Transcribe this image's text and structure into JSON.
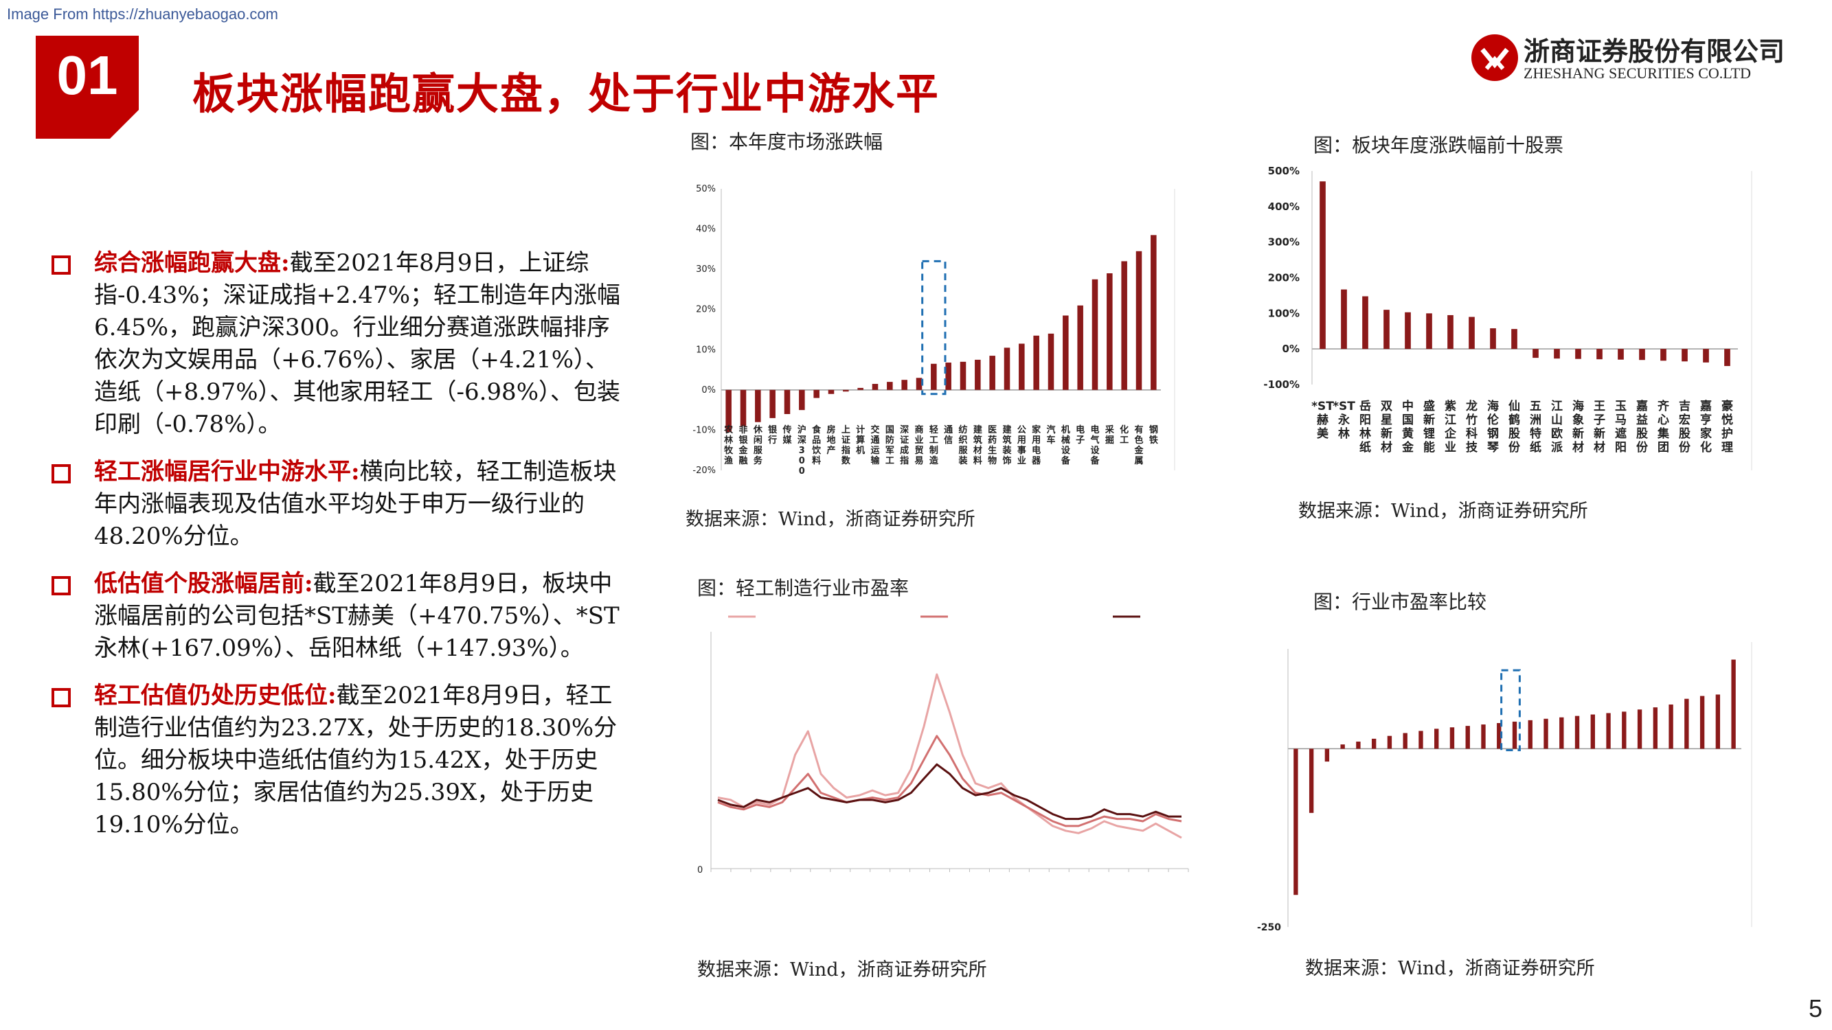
{
  "watermark": "Image From https://zhuanyebaogao.com",
  "section_number": "01",
  "headline": "板块涨幅跑赢大盘，处于行业中游水平",
  "logo": {
    "cn": "浙商证券股份有限公司",
    "en": "ZHESHANG SECURITIES CO.LTD"
  },
  "bullets": [
    {
      "title": "综合涨幅跑赢大盘:",
      "text": "截至2021年8月9日，上证综指-0.43%；深证成指+2.47%；轻工制造年内涨幅6.45%，跑赢沪深300。行业细分赛道涨跌幅排序依次为文娱用品（+6.76%）、家居（+4.21%）、造纸（+8.97%）、其他家用轻工（-6.98%）、包装印刷（-0.78%）。"
    },
    {
      "title": "轻工涨幅居行业中游水平:",
      "text": "横向比较，轻工制造板块年内涨幅表现及估值水平均处于申万一级行业的48.20%分位。"
    },
    {
      "title": "低估值个股涨幅居前:",
      "text": "截至2021年8月9日，板块中涨幅居前的公司包括*ST赫美（+470.75%）、*ST永林(+167.09%）、岳阳林纸（+147.93%）。"
    },
    {
      "title": "轻工估值仍处历史低位:",
      "text": "截至2021年8月9日，轻工制造行业估值约为23.27X，处于历史的18.30%分位。细分板块中造纸估值约为15.42X，处于历史15.80%分位；家居估值约为25.39X，处于历史19.10%分位。"
    }
  ],
  "charts": {
    "market": {
      "caption": "图：本年度市场涨跌幅",
      "source": "数据来源：Wind，浙商证券研究所"
    },
    "top10": {
      "caption": "图：板块年度涨跌幅前十股票",
      "source": "数据来源：Wind，浙商证券研究所"
    },
    "pe": {
      "caption": "图：轻工制造行业市盈率",
      "source": "数据来源：Wind，浙商证券研究所"
    },
    "pe_compare": {
      "caption": "图：行业市盈率比较",
      "source": "数据来源：Wind，浙商证券研究所"
    }
  },
  "page_number": "5",
  "colors": {
    "brand_red": "#c00000",
    "bar_red": "#8b1a1a",
    "highlight_blue": "#1f6fb2"
  },
  "chart_data": [
    {
      "type": "bar",
      "title": "图：本年度市场涨跌幅",
      "ylim": [
        -20,
        50
      ],
      "yticks": [
        "-20%",
        "-10%",
        "0%",
        "10%",
        "20%",
        "30%",
        "40%",
        "50%"
      ],
      "categories": [
        "农林牧渔",
        "非银金融",
        "休闲服务",
        "银行",
        "传媒",
        "沪深300",
        "食品饮料",
        "房地产",
        "上证指数",
        "计算机",
        "交通运输",
        "国防军工",
        "深证成指",
        "商业贸易",
        "轻工制造",
        "通信",
        "纺织服装",
        "建筑材料",
        "医药生物",
        "建筑装饰",
        "公用事业",
        "家用电器",
        "汽车",
        "机械设备",
        "电子",
        "电气设备",
        "采掘",
        "化工",
        "有色金属",
        "钢铁"
      ],
      "values": [
        -10.5,
        -9,
        -8,
        -7,
        -6,
        -5,
        -2,
        -1,
        -0.4,
        0.5,
        1.5,
        2,
        2.5,
        3,
        6.5,
        6.8,
        7,
        7.5,
        8.5,
        10.5,
        11.5,
        13.5,
        14,
        18.5,
        21,
        27.5,
        29,
        32,
        34.5,
        38.5
      ],
      "highlight_index": 14
    },
    {
      "type": "bar",
      "title": "图：板块年度涨跌幅前十股票",
      "ylim": [
        -100,
        500
      ],
      "yticks": [
        "-100%",
        "0%",
        "100%",
        "200%",
        "300%",
        "400%",
        "500%"
      ],
      "categories": [
        "*ST赫美",
        "*ST永林",
        "岳阳林纸",
        "双星新材",
        "中国黄金",
        "盛新锂能",
        "紫江企业",
        "龙竹科技",
        "海伦钢琴",
        "仙鹤股份",
        "五洲特纸",
        "江山欧派",
        "海象新材",
        "王子新材",
        "玉马遮阳",
        "嘉益股份",
        "齐心集团",
        "吉宏股份",
        "嘉亨家化",
        "豪悦护理"
      ],
      "values": [
        470.75,
        167.09,
        147.93,
        110,
        103,
        100,
        95,
        90,
        58,
        56,
        -25,
        -27,
        -28,
        -29,
        -30,
        -31,
        -33,
        -35,
        -38,
        -48
      ]
    },
    {
      "type": "line",
      "title": "图：轻工制造行业市盈率",
      "yticks": [
        "0"
      ],
      "series": [
        {
          "values": [
            30,
            29,
            26,
            28,
            27,
            30,
            48,
            58,
            40,
            34,
            30,
            31,
            33,
            31,
            32,
            42,
            60,
            82,
            66,
            48,
            36,
            34,
            36,
            30,
            26,
            22,
            18,
            16,
            15,
            17,
            20,
            18,
            17,
            16,
            19,
            16,
            13
          ]
        },
        {
          "values": [
            28,
            26,
            25,
            27,
            26,
            28,
            34,
            40,
            32,
            30,
            28,
            29,
            30,
            29,
            30,
            36,
            46,
            56,
            48,
            38,
            32,
            31,
            32,
            29,
            26,
            23,
            20,
            18,
            18,
            20,
            22,
            21,
            21,
            20,
            23,
            21,
            20
          ]
        },
        {
          "values": [
            29,
            27,
            26,
            29,
            28,
            30,
            32,
            34,
            30,
            29,
            28,
            29,
            29,
            28,
            29,
            32,
            38,
            44,
            40,
            34,
            31,
            32,
            34,
            31,
            29,
            26,
            23,
            21,
            21,
            22,
            25,
            23,
            23,
            22,
            24,
            22,
            22
          ]
        }
      ]
    },
    {
      "type": "bar",
      "title": "图：行业市盈率比较",
      "yticks": [
        "-250"
      ],
      "values": [
        -205,
        -90,
        -18,
        6,
        10,
        14,
        18,
        22,
        25,
        28,
        30,
        32,
        34,
        36,
        38,
        40,
        42,
        44,
        46,
        48,
        50,
        52,
        55,
        58,
        62,
        70,
        74,
        76,
        125
      ],
      "highlight_index": 14
    }
  ]
}
